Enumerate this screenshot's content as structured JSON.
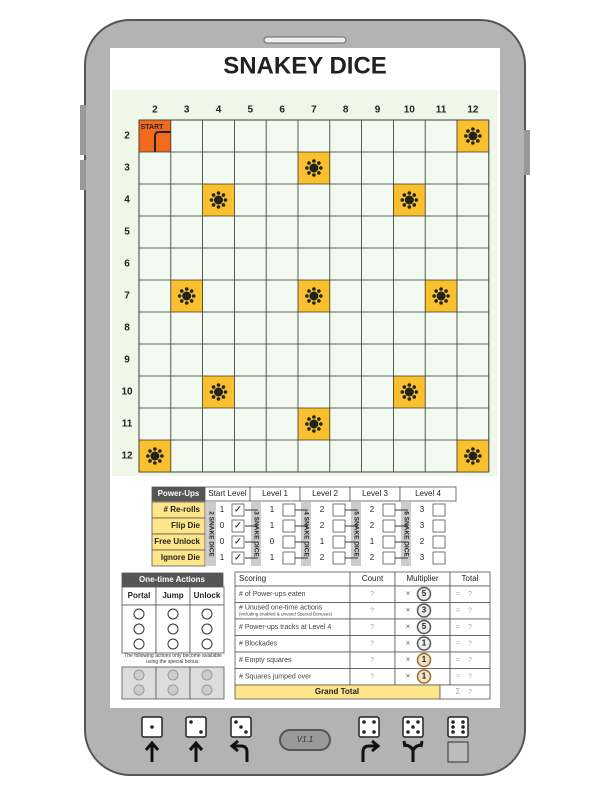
{
  "title": "SNAKEY DICE",
  "board": {
    "columns": [
      "2",
      "3",
      "4",
      "5",
      "6",
      "7",
      "8",
      "9",
      "10",
      "11",
      "12"
    ],
    "rows": [
      "2",
      "3",
      "4",
      "5",
      "6",
      "7",
      "8",
      "9",
      "10",
      "11",
      "12"
    ],
    "start": "START"
  },
  "powerups": {
    "headers": [
      "Power-Ups",
      "Start Level",
      "Level 1",
      "Level 2",
      "Level 3",
      "Level 4"
    ],
    "rows": [
      {
        "name": "# Re-rolls",
        "start": "1",
        "check": "✓",
        "levels": [
          "1",
          "2",
          "2",
          "3"
        ]
      },
      {
        "name": "Flip Die",
        "start": "0",
        "check": "✓",
        "levels": [
          "1",
          "2",
          "2",
          "3"
        ]
      },
      {
        "name": "Free Unlock",
        "start": "0",
        "check": "✓",
        "levels": [
          "0",
          "1",
          "1",
          "2"
        ]
      },
      {
        "name": "Ignore Die",
        "start": "1",
        "check": "✓",
        "levels": [
          "1",
          "2",
          "2",
          "3"
        ]
      }
    ],
    "level_labels": [
      "2 SNAKE DICE",
      "3 SNAKE DICE",
      "4 SNAKE DICE",
      "5 SNAKE DICE",
      "6 SNAKE DICE"
    ]
  },
  "one_time": {
    "title": "One-time Actions",
    "headers": [
      "Portal",
      "Jump",
      "Unlock"
    ],
    "note": "The following actions only become available using the special bonus:"
  },
  "scoring": {
    "headers": [
      "Scoring",
      "Count",
      "Multiplier",
      "Total"
    ],
    "rows": [
      {
        "label": "# of Power-ups eaten",
        "count": "?",
        "times": "×",
        "multiplier": "5",
        "equals": "=",
        "total": "?"
      },
      {
        "label": "# Unused one-time actions",
        "sublabel": "(including enabled & unused Special Bonuses)",
        "count": "?",
        "times": "×",
        "multiplier": "3",
        "equals": "=",
        "total": "?"
      },
      {
        "label": "# Power-ups tracks at Level 4",
        "count": "?",
        "times": "×",
        "multiplier": "5",
        "equals": "=",
        "total": "?"
      },
      {
        "label": "# Blockades",
        "count": "?",
        "times": "×",
        "multiplier": "1",
        "equals": "=",
        "total": "?"
      },
      {
        "label": "# Empty squares",
        "count": "?",
        "times": "×",
        "multiplier": "1",
        "equals": "=",
        "total": "?"
      },
      {
        "label": "# Squares jumped over",
        "count": "?",
        "times": "×",
        "multiplier": "1",
        "equals": "=",
        "total": "?"
      }
    ],
    "grand_total": "Grand Total",
    "sum": "Σ",
    "grand_value": "?"
  },
  "version": "V1.1"
}
